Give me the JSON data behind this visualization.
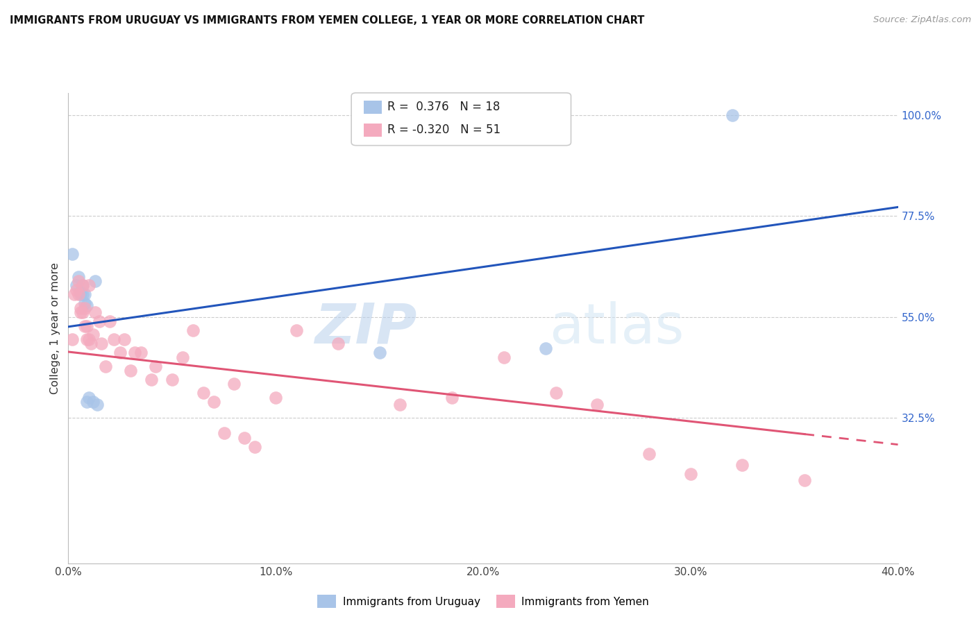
{
  "title": "IMMIGRANTS FROM URUGUAY VS IMMIGRANTS FROM YEMEN COLLEGE, 1 YEAR OR MORE CORRELATION CHART",
  "source": "Source: ZipAtlas.com",
  "ylabel": "College, 1 year or more",
  "xlim": [
    0.0,
    0.4
  ],
  "ylim": [
    0.0,
    1.05
  ],
  "watermark_zip": "ZIP",
  "watermark_atlas": "atlas",
  "legend_r_uruguay": "0.376",
  "legend_n_uruguay": "18",
  "legend_r_yemen": "-0.320",
  "legend_n_yemen": "51",
  "uruguay_color": "#a8c4e8",
  "yemen_color": "#f4aabe",
  "trendline_uruguay_color": "#2255bb",
  "trendline_yemen_color": "#e05575",
  "grid_color": "#cccccc",
  "xticks": [
    0.0,
    0.1,
    0.2,
    0.3,
    0.4
  ],
  "xtick_labels": [
    "0.0%",
    "10.0%",
    "20.0%",
    "30.0%",
    "40.0%"
  ],
  "yticks_right": [
    1.0,
    0.775,
    0.55,
    0.325
  ],
  "ytick_right_labels": [
    "100.0%",
    "77.5%",
    "55.0%",
    "32.5%"
  ],
  "grid_yticks": [
    0.775,
    0.55,
    0.325,
    1.0
  ],
  "uruguay_points_x": [
    0.002,
    0.004,
    0.005,
    0.006,
    0.006,
    0.007,
    0.007,
    0.008,
    0.008,
    0.009,
    0.009,
    0.01,
    0.012,
    0.013,
    0.014,
    0.15,
    0.23,
    0.32
  ],
  "uruguay_points_y": [
    0.69,
    0.62,
    0.64,
    0.605,
    0.6,
    0.62,
    0.6,
    0.58,
    0.6,
    0.575,
    0.36,
    0.37,
    0.36,
    0.63,
    0.355,
    0.47,
    0.48,
    1.0
  ],
  "yemen_points_x": [
    0.002,
    0.003,
    0.004,
    0.005,
    0.005,
    0.006,
    0.006,
    0.007,
    0.007,
    0.008,
    0.008,
    0.009,
    0.009,
    0.01,
    0.01,
    0.011,
    0.012,
    0.013,
    0.015,
    0.016,
    0.018,
    0.02,
    0.022,
    0.025,
    0.027,
    0.03,
    0.032,
    0.035,
    0.04,
    0.042,
    0.05,
    0.055,
    0.06,
    0.065,
    0.07,
    0.075,
    0.08,
    0.085,
    0.09,
    0.1,
    0.11,
    0.13,
    0.16,
    0.185,
    0.21,
    0.235,
    0.255,
    0.28,
    0.3,
    0.325,
    0.355
  ],
  "yemen_points_y": [
    0.5,
    0.6,
    0.61,
    0.63,
    0.6,
    0.56,
    0.57,
    0.56,
    0.62,
    0.57,
    0.53,
    0.5,
    0.53,
    0.62,
    0.5,
    0.49,
    0.51,
    0.56,
    0.54,
    0.49,
    0.44,
    0.54,
    0.5,
    0.47,
    0.5,
    0.43,
    0.47,
    0.47,
    0.41,
    0.44,
    0.41,
    0.46,
    0.52,
    0.38,
    0.36,
    0.29,
    0.4,
    0.28,
    0.26,
    0.37,
    0.52,
    0.49,
    0.355,
    0.37,
    0.46,
    0.38,
    0.355,
    0.245,
    0.2,
    0.22,
    0.185
  ],
  "trendline_uru_x0": 0.0,
  "trendline_uru_y0": 0.528,
  "trendline_uru_x1": 0.4,
  "trendline_uru_y1": 0.795,
  "trendline_yem_x0": 0.0,
  "trendline_yem_y0": 0.472,
  "trendline_yem_x1": 0.4,
  "trendline_yem_y1": 0.265,
  "trendline_yem_solid_end": 0.355
}
